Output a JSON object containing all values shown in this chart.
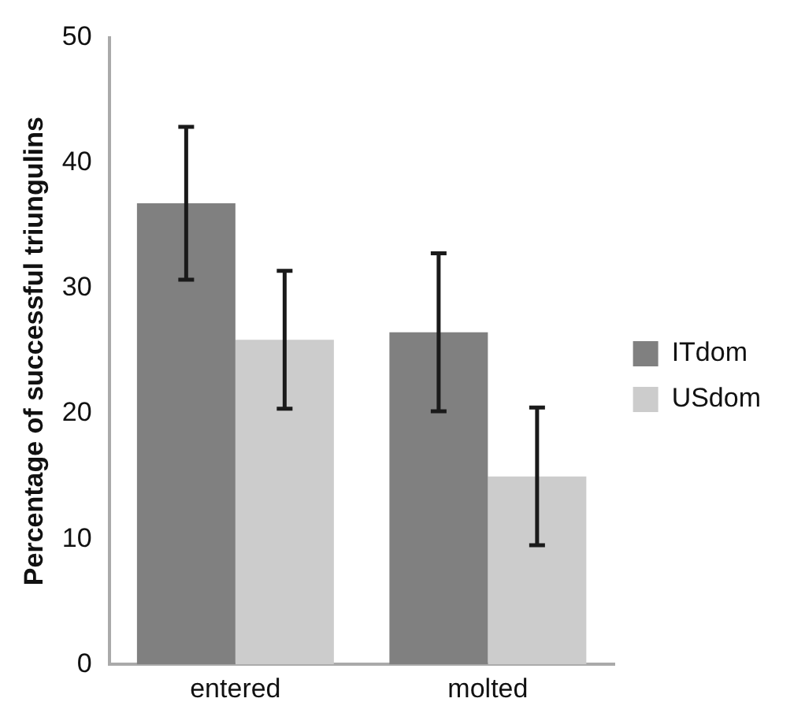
{
  "chart_data": {
    "type": "bar",
    "ylabel": "Percentage of successful triungulins",
    "categories": [
      "entered",
      "molted"
    ],
    "series": [
      {
        "name": "ITdom",
        "color": "#808080",
        "values": [
          36.8,
          26.5
        ],
        "errors": [
          6.1,
          6.3
        ]
      },
      {
        "name": "USdom",
        "color": "#cccccc",
        "values": [
          25.9,
          15.0
        ],
        "errors": [
          5.5,
          5.5
        ]
      }
    ],
    "ylim": [
      0,
      50
    ],
    "yticks": [
      0,
      10,
      20,
      30,
      40,
      50
    ],
    "grid": false,
    "legend": "right"
  }
}
